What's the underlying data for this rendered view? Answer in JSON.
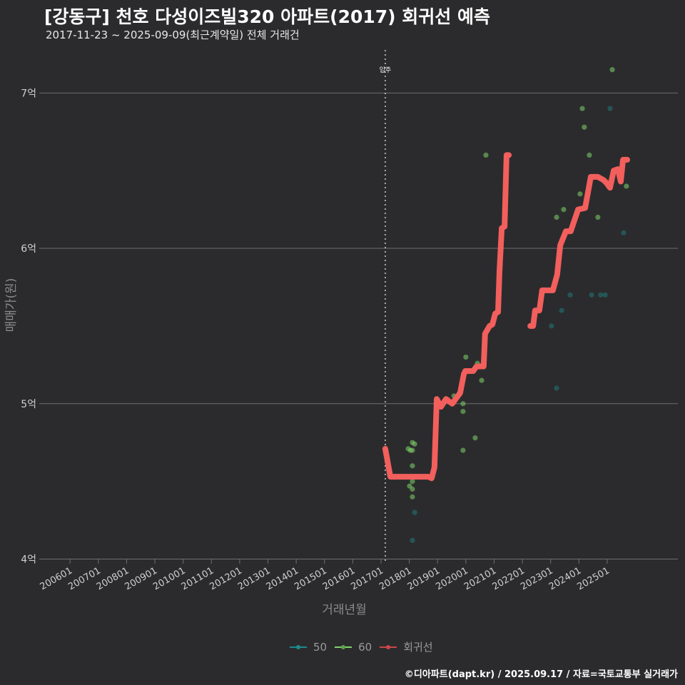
{
  "header": {
    "title": "[강동구] 천호 다성이즈빌320 아파트(2017) 회귀선 예측",
    "subtitle": "2017-11-23 ~ 2025-09-09(최근계약일) 전체 거래건"
  },
  "caption": "©디아파트(dapt.kr) / 2025.09.17 / 자료=국토교통부 실거래가",
  "chart_data": {
    "type": "scatter",
    "xlabel": "거래년월",
    "ylabel": "매매가(원)",
    "xlim": [
      2004.91,
      2027.5
    ],
    "ylim": [
      3.97,
      7.3
    ],
    "x_ticks": [
      2006,
      2007,
      2008,
      2009,
      2010,
      2011,
      2012,
      2013,
      2014,
      2015,
      2016,
      2017,
      2018,
      2019,
      2020,
      2021,
      2022,
      2023,
      2024,
      2025
    ],
    "x_tick_labels": [
      "200601",
      "200701",
      "200801",
      "200901",
      "201001",
      "201101",
      "201201",
      "201301",
      "201401",
      "201501",
      "201601",
      "201701",
      "201801",
      "201901",
      "202001",
      "202101",
      "202201",
      "202301",
      "202401",
      "202501"
    ],
    "y_ticks": [
      4,
      5,
      6,
      7
    ],
    "y_tick_labels": [
      "4억",
      "5억",
      "6억",
      "7억"
    ],
    "grid": "horizontal",
    "annotation": {
      "label": "입주",
      "x": 2017.15
    },
    "legend": {
      "position": "bottom",
      "items": [
        {
          "label": "50",
          "color": "#1f8a8a"
        },
        {
          "label": "60",
          "color": "#7fd36a"
        },
        {
          "label": "회귀선",
          "color": "#f25f5c"
        }
      ]
    },
    "series": [
      {
        "name": "50",
        "color": "#1f8a8a",
        "points": [
          [
            2018.19,
            4.3
          ],
          [
            2018.11,
            4.12
          ],
          [
            2025.1,
            6.9
          ],
          [
            2025.58,
            6.1
          ],
          [
            2023.69,
            5.7
          ],
          [
            2024.45,
            5.7
          ],
          [
            2024.77,
            5.7
          ],
          [
            2024.93,
            5.7
          ],
          [
            2023.39,
            5.6
          ],
          [
            2023.03,
            5.5
          ],
          [
            2023.21,
            5.1
          ]
        ]
      },
      {
        "name": "60",
        "color": "#7fd36a",
        "points": [
          [
            2018.11,
            4.75
          ],
          [
            2018.19,
            4.74
          ],
          [
            2017.96,
            4.71
          ],
          [
            2018.04,
            4.7
          ],
          [
            2018.11,
            4.7
          ],
          [
            2018.11,
            4.6
          ],
          [
            2018.11,
            4.5
          ],
          [
            2018.01,
            4.47
          ],
          [
            2018.11,
            4.45
          ],
          [
            2018.11,
            4.4
          ],
          [
            2020.0,
            5.3
          ],
          [
            2020.41,
            5.26
          ],
          [
            2020.56,
            5.15
          ],
          [
            2019.58,
            5.05
          ],
          [
            2019.9,
            5.0
          ],
          [
            2019.9,
            4.95
          ],
          [
            2020.33,
            4.78
          ],
          [
            2019.9,
            4.7
          ],
          [
            2020.71,
            6.6
          ],
          [
            2025.18,
            7.15
          ],
          [
            2024.12,
            6.9
          ],
          [
            2024.19,
            6.78
          ],
          [
            2024.37,
            6.6
          ],
          [
            2024.04,
            6.35
          ],
          [
            2025.68,
            6.4
          ],
          [
            2023.46,
            6.25
          ],
          [
            2023.21,
            6.2
          ],
          [
            2024.67,
            6.2
          ]
        ]
      },
      {
        "name": "회귀선",
        "color": "#f25f5c",
        "segments": [
          [
            [
              2017.15,
              4.71
            ],
            [
              2017.33,
              4.53
            ],
            [
              2017.66,
              4.53
            ],
            [
              2018.67,
              4.53
            ],
            [
              2018.79,
              4.52
            ],
            [
              2018.89,
              4.59
            ],
            [
              2018.97,
              5.03
            ],
            [
              2019.12,
              4.98
            ],
            [
              2019.3,
              5.03
            ],
            [
              2019.52,
              5.0
            ],
            [
              2019.68,
              5.04
            ],
            [
              2019.8,
              5.07
            ],
            [
              2019.93,
              5.19
            ],
            [
              2019.98,
              5.21
            ],
            [
              2020.26,
              5.21
            ],
            [
              2020.38,
              5.24
            ],
            [
              2020.63,
              5.24
            ],
            [
              2020.68,
              5.45
            ],
            [
              2020.84,
              5.5
            ],
            [
              2020.94,
              5.51
            ],
            [
              2021.04,
              5.58
            ],
            [
              2021.14,
              5.59
            ],
            [
              2021.19,
              5.85
            ],
            [
              2021.27,
              6.13
            ],
            [
              2021.37,
              6.14
            ],
            [
              2021.44,
              6.6
            ],
            [
              2021.52,
              6.6
            ]
          ],
          [
            [
              2022.28,
              5.5
            ],
            [
              2022.38,
              5.5
            ],
            [
              2022.45,
              5.6
            ],
            [
              2022.6,
              5.6
            ],
            [
              2022.7,
              5.73
            ],
            [
              2023.08,
              5.73
            ],
            [
              2023.23,
              5.83
            ],
            [
              2023.34,
              6.02
            ],
            [
              2023.54,
              6.11
            ],
            [
              2023.71,
              6.11
            ],
            [
              2023.97,
              6.25
            ],
            [
              2024.22,
              6.26
            ],
            [
              2024.42,
              6.46
            ],
            [
              2024.67,
              6.46
            ],
            [
              2024.87,
              6.44
            ],
            [
              2024.98,
              6.42
            ],
            [
              2025.1,
              6.39
            ],
            [
              2025.23,
              6.5
            ],
            [
              2025.38,
              6.51
            ],
            [
              2025.48,
              6.43
            ],
            [
              2025.56,
              6.57
            ],
            [
              2025.71,
              6.57
            ]
          ]
        ]
      }
    ]
  }
}
